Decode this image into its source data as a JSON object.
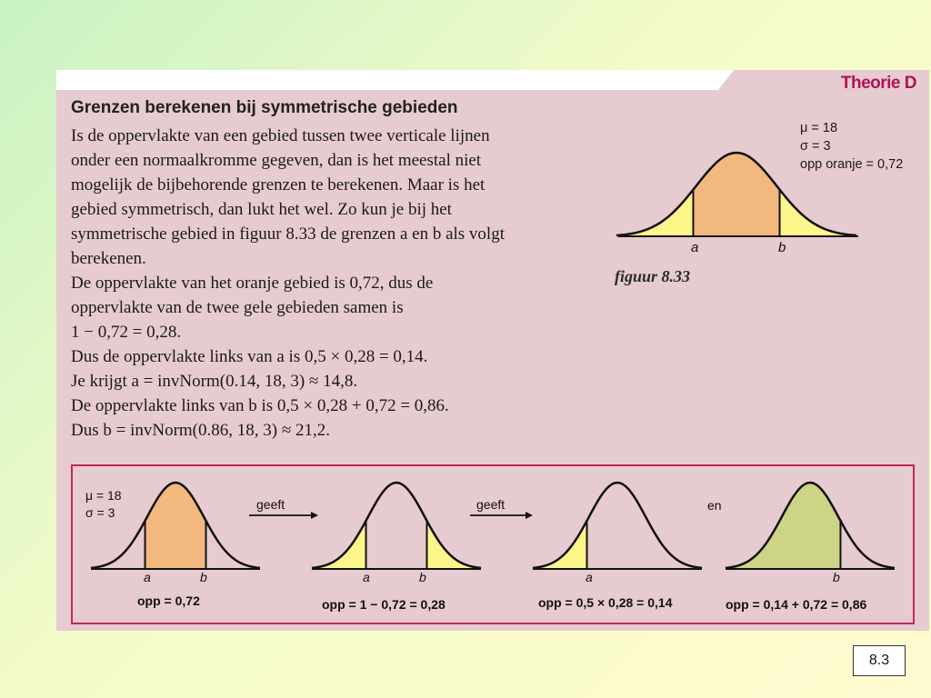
{
  "section_label": "Theorie D",
  "heading": "Grenzen berekenen bij symmetrische gebieden",
  "body_lines": [
    "Is de oppervlakte van een gebied tussen twee verticale lijnen",
    "onder een normaalkromme gegeven, dan is het meestal niet",
    "mogelijk de bijbehorende grenzen te berekenen. Maar is het",
    "gebied symmetrisch, dan lukt het wel. Zo kun je bij het",
    "symmetrische gebied in figuur 8.33 de grenzen a en b als volgt",
    "berekenen.",
    "De oppervlakte van het oranje gebied is 0,72, dus de",
    "oppervlakte van de twee gele gebieden samen is",
    "1 − 0,72 = 0,28.",
    "Dus de oppervlakte links van a is  0,5 × 0,28 = 0,14.",
    "Je krijgt  a = invNorm(0.14, 18, 3) ≈ 14,8.",
    "De oppervlakte links van b is  0,5 × 0,28 + 0,72 = 0,86.",
    "Dus  b = invNorm(0.86, 18, 3) ≈ 21,2."
  ],
  "figure": {
    "params": [
      "μ = 18",
      "σ = 3",
      "opp oranje = 0,72"
    ],
    "label_a": "a",
    "label_b": "b",
    "caption": "figuur 8.33"
  },
  "example": {
    "params": [
      "μ = 18",
      "σ = 3"
    ],
    "arrow_label_1": "geeft",
    "arrow_label_2": "geeft",
    "connector": "en",
    "label_a": "a",
    "label_b": "b",
    "captions": [
      "opp = 0,72",
      "opp = 1 − 0,72 = 0,28",
      "opp = 0,5 × 0,28 = 0,14",
      "opp = 0,14 + 0,72 = 0,86"
    ]
  },
  "slide_number": "8.3",
  "colors": {
    "panel": "#e6cbd1",
    "orange_area": "#f3b87d",
    "yellow_area": "#fbf58a",
    "green_area": "#cdd486",
    "frame": "#c2285f",
    "title": "#b01452"
  }
}
